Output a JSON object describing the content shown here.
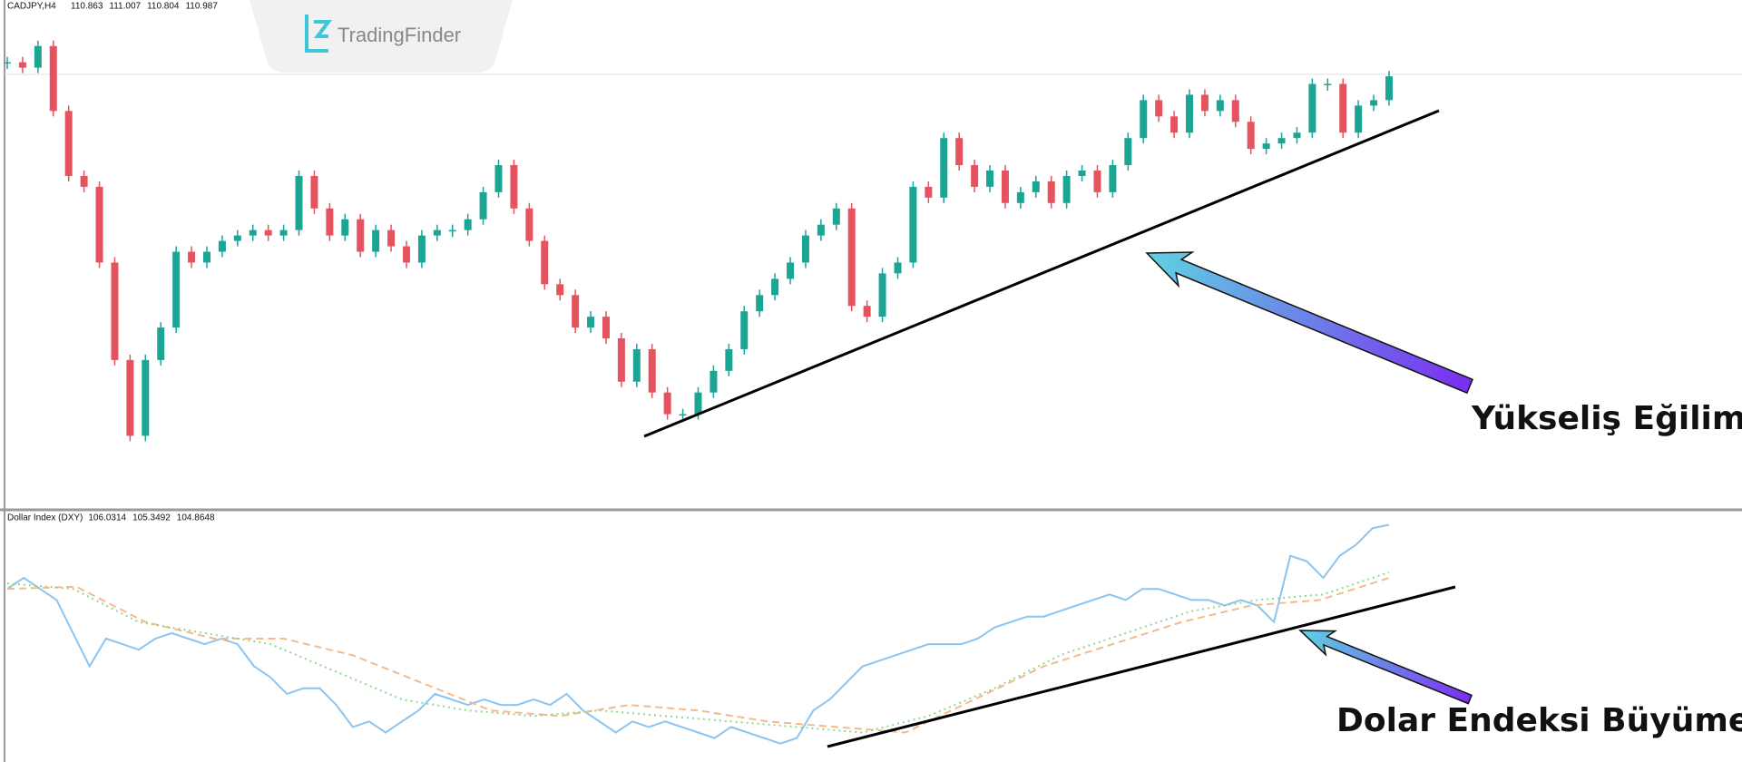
{
  "chart_data": [
    {
      "type": "candlestick",
      "symbol": "CADJPY,H4",
      "header_values": [
        110.863,
        111.007,
        110.804,
        110.987
      ],
      "annotation": "Yükseliş Eğilimi",
      "up_color": "#1aa595",
      "down_color": "#e5535f",
      "ylim": [
        103,
        112.4
      ],
      "values": [
        111.25,
        111.15,
        111.55,
        110.35,
        109.15,
        108.95,
        107.55,
        105.75,
        104.35,
        105.75,
        106.35,
        107.75,
        107.55,
        107.75,
        107.95,
        108.05,
        108.15,
        108.05,
        108.15,
        109.15,
        108.55,
        108.05,
        108.35,
        107.75,
        108.15,
        107.85,
        107.55,
        108.05,
        108.15,
        108.15,
        108.35,
        108.85,
        109.35,
        108.55,
        107.95,
        107.15,
        106.95,
        106.35,
        106.55,
        106.15,
        105.35,
        105.95,
        105.15,
        104.75,
        104.75,
        105.15,
        105.55,
        105.95,
        106.65,
        106.95,
        107.25,
        107.55,
        108.05,
        108.25,
        108.55,
        106.75,
        106.55,
        107.35,
        107.55,
        108.95,
        108.75,
        109.85,
        109.35,
        108.95,
        109.25,
        108.65,
        108.85,
        109.05,
        108.65,
        109.15,
        109.25,
        108.85,
        109.35,
        109.85,
        110.55,
        110.25,
        109.95,
        110.65,
        110.35,
        110.55,
        110.15,
        109.65,
        109.75,
        109.85,
        109.95,
        110.85,
        110.85,
        109.95,
        110.45,
        110.55,
        110.99
      ]
    },
    {
      "type": "line",
      "name": "Dollar Index (DXY)",
      "header_values": [
        106.0314,
        105.3492,
        104.8648
      ],
      "annotation": "Dolar Endeksi Büyümesi",
      "ylim": [
        99.4,
        107.5
      ],
      "series": [
        {
          "color": "#8cc4f0",
          "style": "solid",
          "values": [
            105.04,
            105.4,
            105.04,
            104.68,
            103.6,
            102.52,
            103.42,
            103.24,
            103.06,
            103.42,
            103.6,
            103.42,
            103.24,
            103.42,
            103.24,
            102.52,
            102.16,
            101.62,
            101.8,
            101.8,
            101.26,
            100.54,
            100.72,
            100.36,
            100.72,
            101.08,
            101.62,
            101.44,
            101.26,
            101.44,
            101.26,
            101.26,
            101.44,
            101.26,
            101.62,
            101.08,
            100.72,
            100.36,
            100.72,
            100.54,
            100.72,
            100.54,
            100.36,
            100.18,
            100.54,
            100.36,
            100.18,
            100.0,
            100.18,
            101.08,
            101.44,
            101.98,
            102.52,
            102.7,
            102.88,
            103.06,
            103.24,
            103.24,
            103.24,
            103.42,
            103.78,
            103.96,
            104.14,
            104.14,
            104.32,
            104.5,
            104.68,
            104.86,
            104.68,
            105.04,
            105.04,
            104.86,
            104.68,
            104.68,
            104.5,
            104.68,
            104.5,
            103.96,
            106.12,
            105.94,
            105.4,
            106.12,
            106.48,
            107.02,
            107.13
          ]
        },
        {
          "color": "#f5b98a",
          "style": "dashed",
          "values": [
            105.04,
            105.11,
            103.96,
            103.42,
            103.42,
            102.88,
            101.98,
            101.08,
            100.9,
            101.26,
            101.08,
            100.72,
            100.54,
            100.36,
            101.44,
            102.52,
            103.24,
            103.96,
            104.5,
            104.68,
            105.4
          ]
        },
        {
          "color": "#8fd88f",
          "style": "dotted",
          "values": [
            105.22,
            105.04,
            103.96,
            103.6,
            103.24,
            102.34,
            101.44,
            101.08,
            100.9,
            101.08,
            100.9,
            100.72,
            100.54,
            100.36,
            100.9,
            101.8,
            102.88,
            103.6,
            104.32,
            104.68,
            104.86,
            105.58
          ]
        }
      ]
    }
  ],
  "logo": "TradingFinder"
}
